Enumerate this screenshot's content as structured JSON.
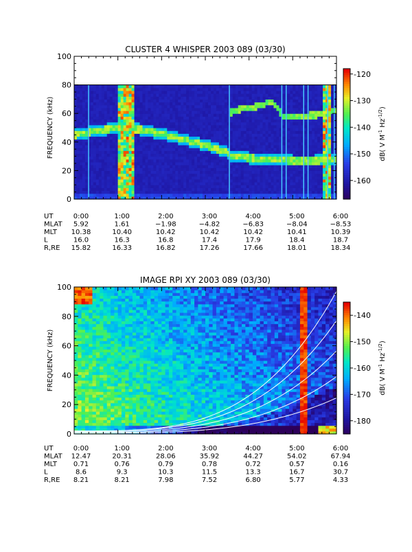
{
  "chart_data": [
    {
      "type": "heatmap",
      "title": "CLUSTER 4 WHISPER 2003 089 (03/30)",
      "ylabel": "FREQUENCY (kHz)",
      "ylim": [
        0,
        100
      ],
      "y_ticks": [
        "0",
        "20",
        "40",
        "60",
        "80",
        "100"
      ],
      "x_ticks": [
        "0:00",
        "1:00",
        "2:00",
        "3:00",
        "4:00",
        "5:00",
        "6:00"
      ],
      "colorbar": {
        "label": "dB( V M",
        "unit_tail": "-1",
        "unit_hz": " Hz",
        "unit_pow": "-1/2",
        "unit_close": ")",
        "ticks": [
          "-120",
          "-130",
          "-140",
          "-150",
          "-160"
        ],
        "range": [
          -167,
          -118
        ]
      },
      "data_ceiling_khz": 80,
      "spectral_band_khz": {
        "lower_trace": [
          [
            0,
            45
          ],
          [
            0.5,
            48
          ],
          [
            1.0,
            50
          ],
          [
            1.5,
            49
          ],
          [
            2.0,
            46
          ],
          [
            2.5,
            42
          ],
          [
            3.0,
            38
          ],
          [
            3.3,
            35
          ],
          [
            3.5,
            34
          ],
          [
            3.6,
            30
          ],
          [
            4.0,
            29
          ],
          [
            4.5,
            28
          ],
          [
            5.0,
            27
          ],
          [
            5.5,
            27
          ],
          [
            6.0,
            28
          ]
        ],
        "upper_trace": [
          [
            0,
            45
          ],
          [
            1.0,
            53
          ],
          [
            2.0,
            47
          ],
          [
            3.0,
            42
          ],
          [
            3.5,
            44
          ],
          [
            3.6,
            62
          ],
          [
            4.0,
            64
          ],
          [
            4.3,
            66
          ],
          [
            4.5,
            69
          ],
          [
            4.8,
            58
          ],
          [
            5.5,
            59
          ],
          [
            6.0,
            62
          ]
        ]
      },
      "ephemeris": {
        "labels": [
          "UT",
          "MLAT",
          "MLT",
          "L",
          "R,RE"
        ],
        "rows": {
          "UT": [
            "0:00",
            "1:00",
            "2:00",
            "3:00",
            "4:00",
            "5:00",
            "6:00"
          ],
          "MLAT": [
            "5.92",
            "1.61",
            "−1.98",
            "−4.82",
            "−6.83",
            "−8.04",
            "−8.53"
          ],
          "MLT": [
            "10.38",
            "10.40",
            "10.42",
            "10.42",
            "10.42",
            "10.41",
            "10.39"
          ],
          "L": [
            "16.0",
            "16.3",
            "16.8",
            "17.4",
            "17.9",
            "18.4",
            "18.7"
          ],
          "R,RE": [
            "15.82",
            "16.33",
            "16.82",
            "17.26",
            "17.66",
            "18.01",
            "18.34"
          ]
        }
      }
    },
    {
      "type": "heatmap",
      "title": "IMAGE RPI XY 2003 089 (03/30)",
      "ylabel": "FREQUENCY (kHz)",
      "ylim": [
        0,
        100
      ],
      "y_ticks": [
        "0",
        "20",
        "40",
        "60",
        "80",
        "100"
      ],
      "x_ticks": [
        "0:00",
        "1:00",
        "2:00",
        "3:00",
        "4:00",
        "5:00",
        "6:00"
      ],
      "colorbar": {
        "label": "dB( V M",
        "unit_tail": "-1",
        "unit_hz": " Hz",
        "unit_pow": "-1/2",
        "unit_close": ")",
        "ticks": [
          "-140",
          "-150",
          "-160",
          "-170",
          "-180"
        ],
        "range": [
          -185,
          -135
        ]
      },
      "ephemeris": {
        "labels": [
          "UT",
          "MLAT",
          "MLT",
          "L",
          "R,RE"
        ],
        "rows": {
          "UT": [
            "0:00",
            "1:00",
            "2:00",
            "3:00",
            "4:00",
            "5:00",
            "6:00"
          ],
          "MLAT": [
            "12.47",
            "20.31",
            "28.06",
            "35.92",
            "44.27",
            "54.02",
            "67.94"
          ],
          "MLT": [
            "0.71",
            "0.76",
            "0.79",
            "0.78",
            "0.72",
            "0.57",
            "0.16"
          ],
          "L": [
            "8.6",
            "9.3",
            "10.3",
            "11.5",
            "13.3",
            "16.7",
            "30.7"
          ],
          "R,RE": [
            "8.21",
            "8.21",
            "7.98",
            "7.52",
            "6.80",
            "5.77",
            "4.33"
          ]
        }
      }
    }
  ]
}
